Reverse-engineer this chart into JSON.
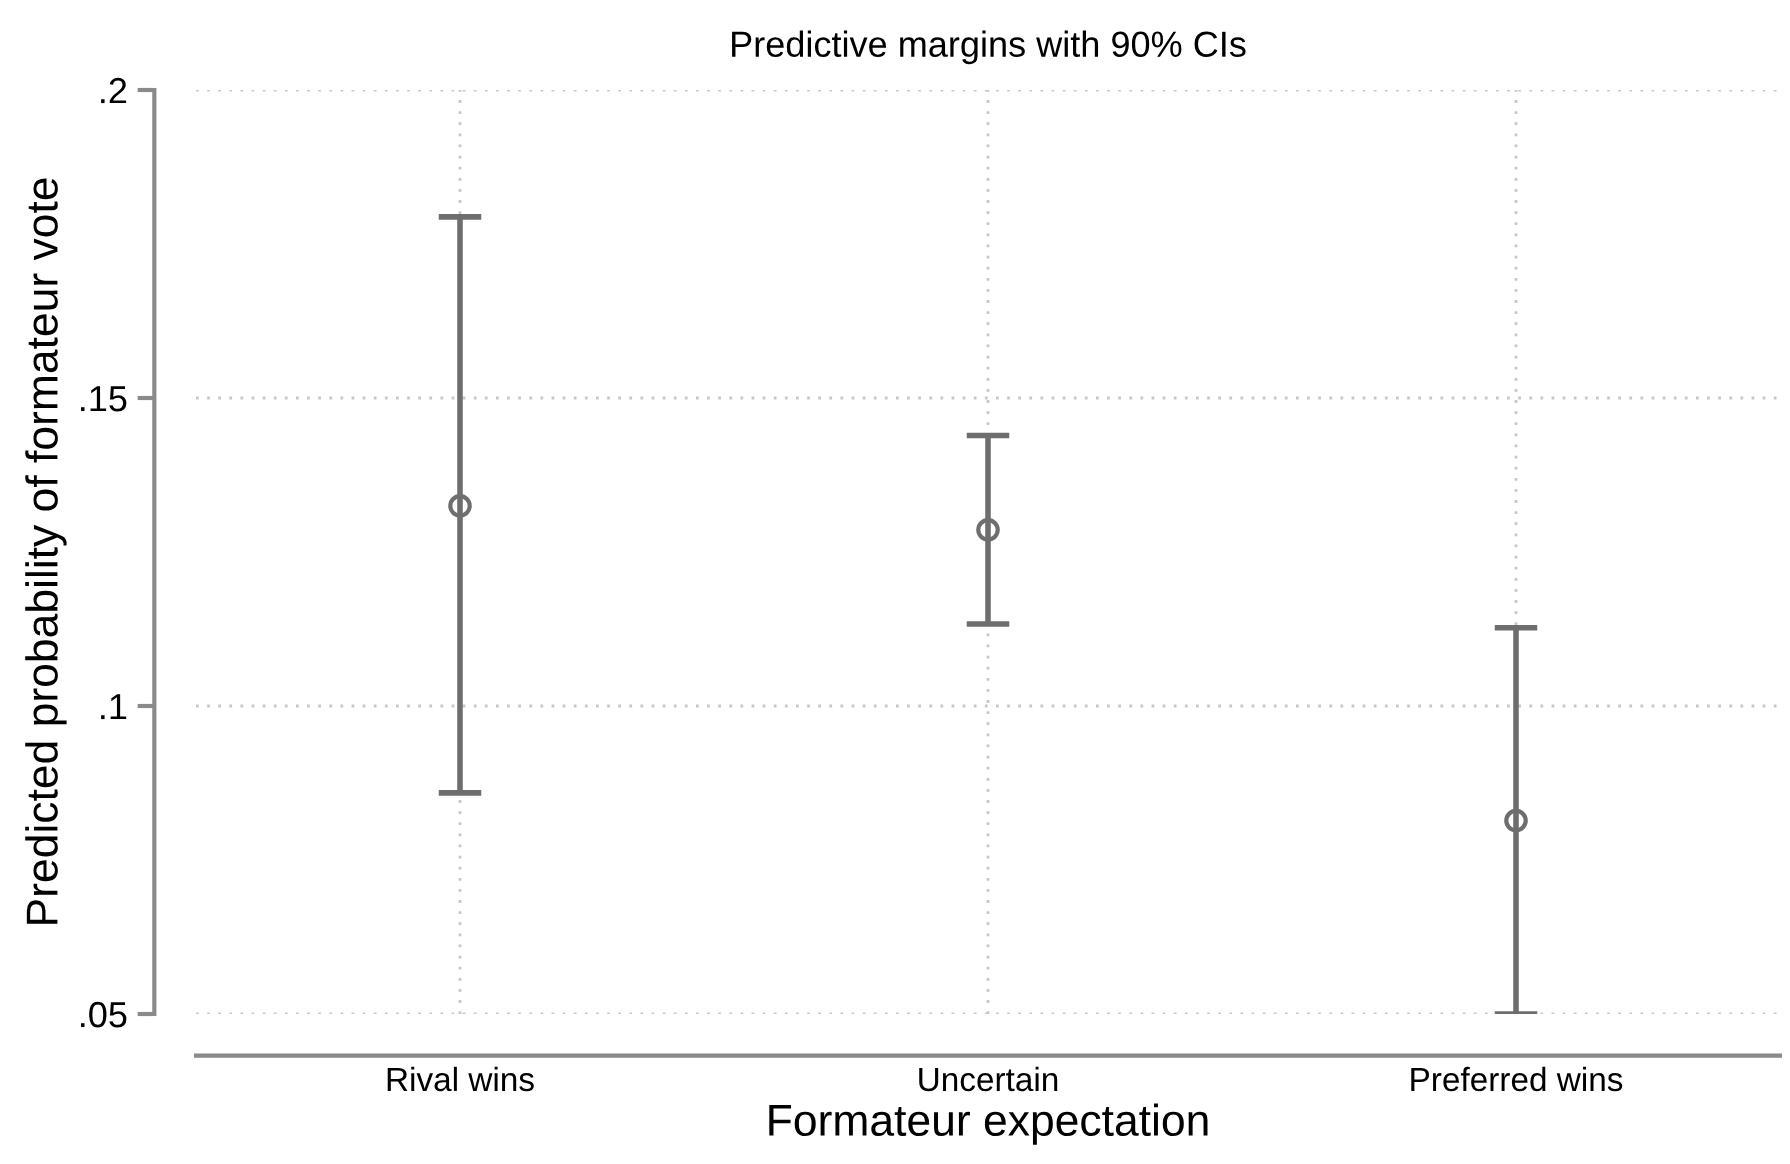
{
  "chart_data": {
    "type": "scatter",
    "title": "Predictive margins with 90% CIs",
    "xlabel": "Formateur expectation",
    "ylabel": "Predicted probability of formateur vote",
    "categories": [
      "Rival wins",
      "Uncertain",
      "Preferred wins"
    ],
    "series": [
      {
        "color": "#6e6e6e",
        "values": [
          0.1325,
          0.1286,
          0.0814
        ],
        "errors": [
          [
            0.0859,
            0.1794
          ],
          [
            0.1133,
            0.1439
          ],
          [
            0.05,
            0.1127
          ]
        ]
      }
    ],
    "marker": "circle",
    "ylim": [
      0.05,
      0.2
    ],
    "yticks": [
      {
        "value": 0.05,
        "label": ".05"
      },
      {
        "value": 0.1,
        "label": ".1"
      },
      {
        "value": 0.15,
        "label": ".15"
      },
      {
        "value": 0.2,
        "label": ".2"
      }
    ],
    "grid": true
  }
}
